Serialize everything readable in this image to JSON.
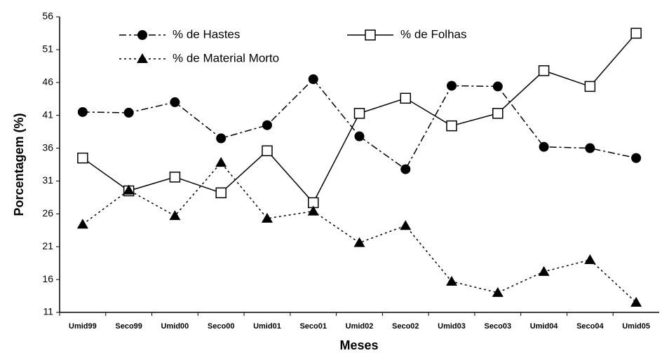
{
  "chart_data": {
    "type": "line",
    "xlabel": "Meses",
    "ylabel": "Porcentagem (%)",
    "categories": [
      "Umid99",
      "Seco99",
      "Umid00",
      "Seco00",
      "Umid01",
      "Seco01",
      "Umid02",
      "Seco02",
      "Umid03",
      "Seco03",
      "Umid04",
      "Seco04",
      "Umid05"
    ],
    "series": [
      {
        "name": "% de Hastes",
        "color": "#000000",
        "marker": "circle",
        "dash": "dashdot",
        "values": [
          41.5,
          41.4,
          43,
          37.5,
          39.5,
          46.5,
          37.8,
          32.8,
          45.5,
          45.4,
          36.2,
          36,
          34.5
        ]
      },
      {
        "name": "% de Folhas",
        "color": "#000000",
        "marker": "square",
        "dash": "solid",
        "values": [
          34.5,
          29.5,
          31.6,
          29.2,
          35.6,
          27.7,
          41.3,
          43.6,
          39.4,
          41.3,
          47.8,
          45.4,
          53.5
        ]
      },
      {
        "name": "% de Material Morto",
        "color": "#000000",
        "marker": "triangle",
        "dash": "dotted",
        "values": [
          24.4,
          29.6,
          25.7,
          33.8,
          25.3,
          26.4,
          21.6,
          24.2,
          15.7,
          14,
          17.2,
          19,
          12.5
        ]
      }
    ],
    "ylim": [
      11,
      56
    ],
    "yticks": [
      11,
      16,
      21,
      26,
      31,
      36,
      41,
      46,
      51,
      56
    ],
    "grid": false
  }
}
